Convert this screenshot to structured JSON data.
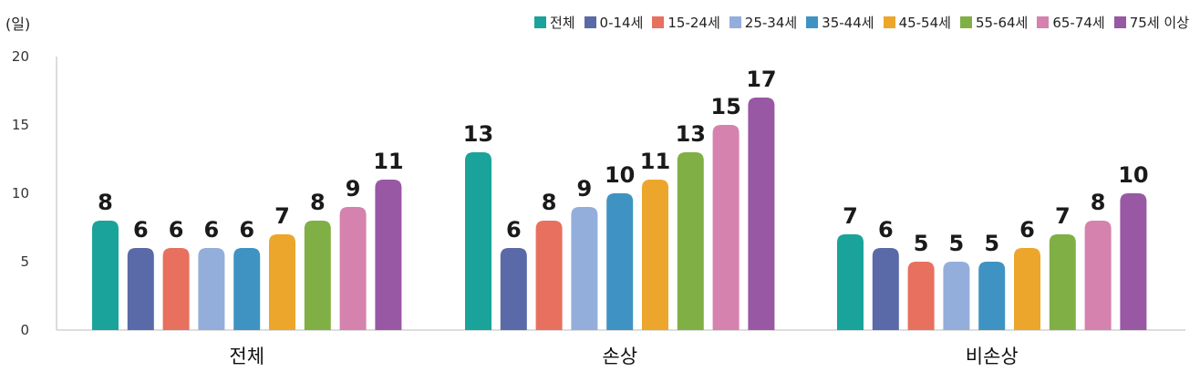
{
  "chart_data": {
    "type": "bar",
    "unit": "(일)",
    "categories": [
      "전체",
      "손상",
      "비손상"
    ],
    "yticks": [
      0,
      5,
      10,
      15,
      20
    ],
    "ylim": [
      0,
      20
    ],
    "grid": false,
    "legend_position": "top-right",
    "series": [
      {
        "name": "전체",
        "color": "#1aa39a",
        "values": [
          8,
          13,
          7
        ]
      },
      {
        "name": "0-14세",
        "color": "#5a6aa8",
        "values": [
          6,
          6,
          6
        ]
      },
      {
        "name": "15-24세",
        "color": "#e8705e",
        "values": [
          6,
          8,
          5
        ]
      },
      {
        "name": "25-34세",
        "color": "#94aedb",
        "values": [
          6,
          9,
          5
        ]
      },
      {
        "name": "35-44세",
        "color": "#3f93c3",
        "values": [
          6,
          10,
          5
        ]
      },
      {
        "name": "45-54세",
        "color": "#eda62c",
        "values": [
          7,
          11,
          6
        ]
      },
      {
        "name": "55-64세",
        "color": "#80b045",
        "values": [
          8,
          13,
          7
        ]
      },
      {
        "name": "65-74세",
        "color": "#d582ae",
        "values": [
          9,
          15,
          8
        ]
      },
      {
        "name": "75세 이상",
        "color": "#9858a3",
        "values": [
          11,
          17,
          10
        ]
      }
    ]
  }
}
